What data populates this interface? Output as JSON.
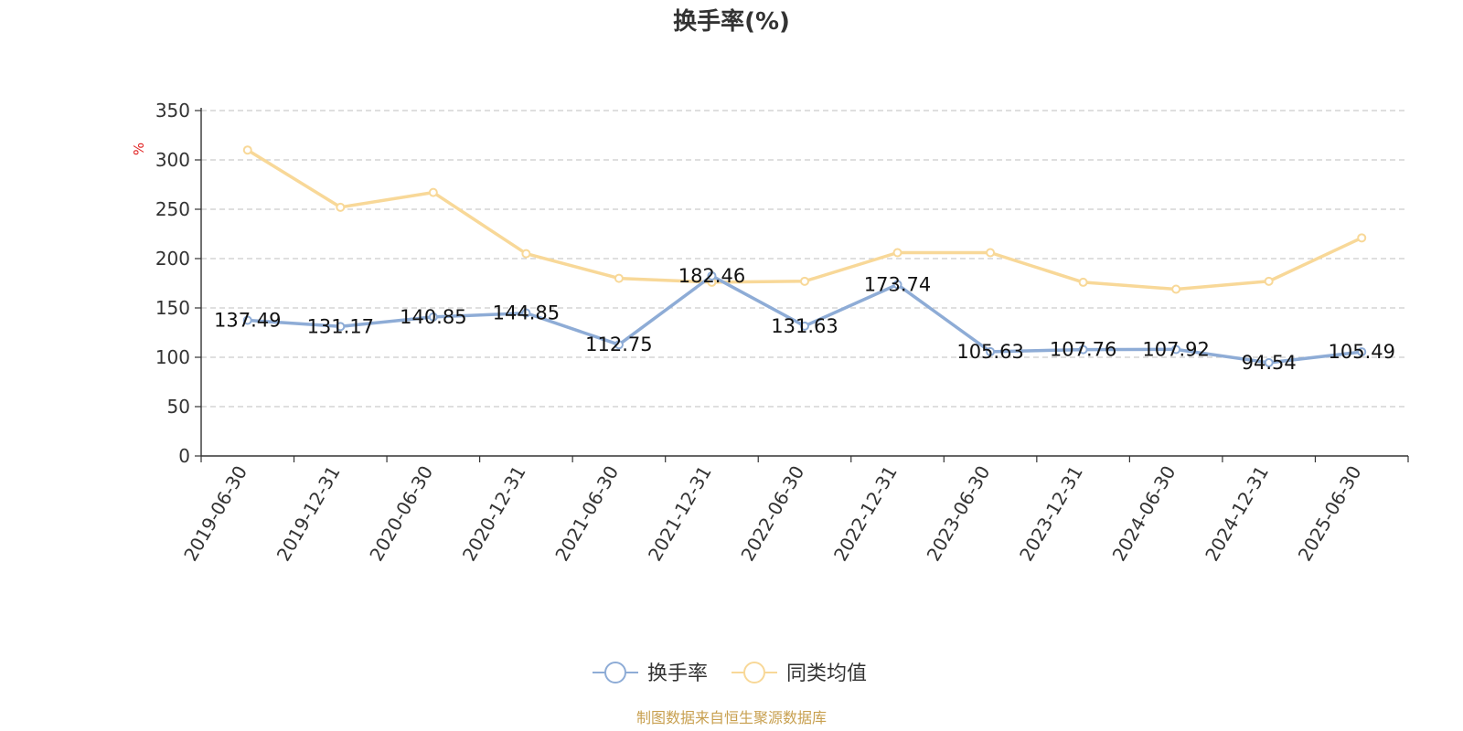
{
  "chart_data": {
    "type": "line",
    "title": "换手率(%)",
    "ylabel": "%",
    "ylim": [
      0,
      350
    ],
    "yticks": [
      0,
      50,
      100,
      150,
      200,
      250,
      300,
      350
    ],
    "grid": true,
    "legend_position": "bottom-center",
    "categories": [
      "2019-06-30",
      "2019-12-31",
      "2020-06-30",
      "2020-12-31",
      "2021-06-30",
      "2021-12-31",
      "2022-06-30",
      "2022-12-31",
      "2023-06-30",
      "2023-12-31",
      "2024-06-30",
      "2024-12-31",
      "2025-06-30"
    ],
    "series": [
      {
        "name": "换手率",
        "color": "#8eacd6",
        "values": [
          137.49,
          131.17,
          140.85,
          144.85,
          112.75,
          182.46,
          131.63,
          173.74,
          105.63,
          107.76,
          107.92,
          94.54,
          105.49
        ],
        "labels": [
          "137.49",
          "131.17",
          "140.85",
          "144.85",
          "112.75",
          "182.46",
          "131.63",
          "173.74",
          "105.63",
          "107.76",
          "107.92",
          "94.54",
          "105.49"
        ]
      },
      {
        "name": "同类均值",
        "color": "#f8d898",
        "values": [
          310,
          252,
          267,
          205,
          180,
          176,
          177,
          206,
          206,
          176,
          169,
          177,
          221
        ]
      }
    ]
  },
  "footer": {
    "source": "制图数据来自恒生聚源数据库"
  }
}
